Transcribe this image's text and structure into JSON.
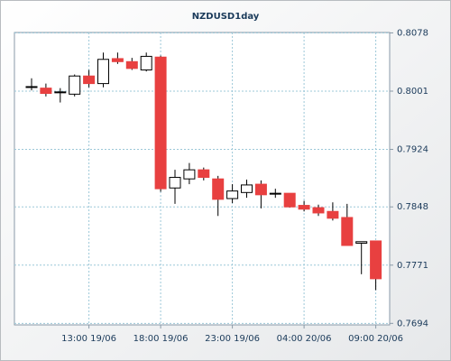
{
  "chart_data": {
    "type": "candlestick",
    "title": "NZDUSD1day",
    "categories": [
      "",
      "",
      "",
      "",
      "13:00 19/06",
      "",
      "",
      "",
      "",
      "18:00 19/06",
      "",
      "",
      "",
      "",
      "23:00 19/06",
      "",
      "",
      "",
      "",
      "04:00 20/06",
      "",
      "",
      "",
      "",
      "09:00 20/06"
    ],
    "open": [
      0.8007,
      0.8005,
      0.8,
      0.7997,
      0.8021,
      0.8011,
      0.8044,
      0.804,
      0.8029,
      0.8046,
      0.7873,
      0.7885,
      0.7897,
      0.7885,
      0.7859,
      0.7867,
      0.7878,
      0.7866,
      0.7866,
      0.785,
      0.7847,
      0.7842,
      0.7834,
      0.78,
      0.7803
    ],
    "high": [
      0.8018,
      0.8011,
      0.8005,
      0.8023,
      0.8029,
      0.8052,
      0.8052,
      0.8045,
      0.8052,
      0.8048,
      0.7897,
      0.7906,
      0.79,
      0.7889,
      0.7878,
      0.7884,
      0.7883,
      0.7872,
      0.7866,
      0.7856,
      0.7851,
      0.7854,
      0.7852,
      0.7802,
      0.7803
    ],
    "low": [
      0.8002,
      0.7994,
      0.7986,
      0.7994,
      0.8006,
      0.8006,
      0.8037,
      0.8029,
      0.8027,
      0.7868,
      0.7852,
      0.7878,
      0.7883,
      0.7836,
      0.7853,
      0.786,
      0.7846,
      0.786,
      0.7847,
      0.7842,
      0.7836,
      0.783,
      0.7797,
      0.7759,
      0.7738
    ],
    "close": [
      0.8007,
      0.7998,
      0.8,
      0.8021,
      0.8011,
      0.8043,
      0.804,
      0.8031,
      0.8047,
      0.7872,
      0.7887,
      0.7897,
      0.7887,
      0.7858,
      0.7869,
      0.7877,
      0.7864,
      0.7866,
      0.7848,
      0.7845,
      0.784,
      0.7833,
      0.7797,
      0.7802,
      0.7753
    ],
    "up_color": "#ffffff",
    "down_color": "#e84040",
    "edge_color": "#000000",
    "ylim": [
      0.7692,
      0.81
    ],
    "yticks": [
      0.8078,
      0.8001,
      0.7924,
      0.7848,
      0.7771,
      0.7694
    ],
    "grid": true
  }
}
